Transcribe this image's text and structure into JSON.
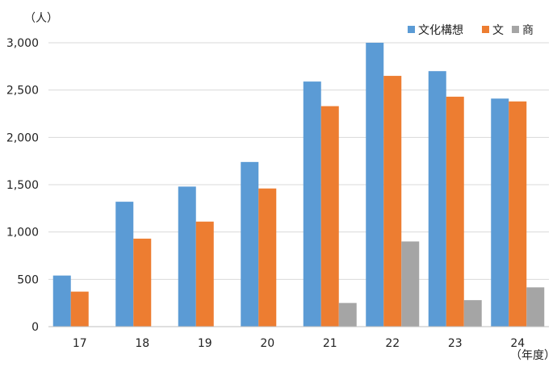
{
  "chart_data": {
    "type": "bar",
    "y_unit_label": "（人）",
    "x_unit_label": "（年度）",
    "categories": [
      "17",
      "18",
      "19",
      "20",
      "21",
      "22",
      "23",
      "24"
    ],
    "ylim": [
      0,
      3000
    ],
    "yticks": [
      0,
      500,
      1000,
      1500,
      2000,
      2500,
      3000
    ],
    "ytick_labels": [
      "0",
      "500",
      "1,000",
      "1,500",
      "2,000",
      "2,500",
      "3,000"
    ],
    "grid": true,
    "legend_position": "top-right",
    "series": [
      {
        "name": "文化構想",
        "color": "#5b9bd5",
        "values": [
          540,
          1320,
          1480,
          1740,
          2590,
          3000,
          2700,
          2410
        ]
      },
      {
        "name": "文",
        "color": "#ed7d31",
        "values": [
          370,
          930,
          1110,
          1460,
          2330,
          2650,
          2430,
          2380
        ]
      },
      {
        "name": "商",
        "color": "#a5a5a5",
        "values": [
          0,
          0,
          0,
          0,
          250,
          900,
          280,
          415
        ]
      }
    ]
  }
}
